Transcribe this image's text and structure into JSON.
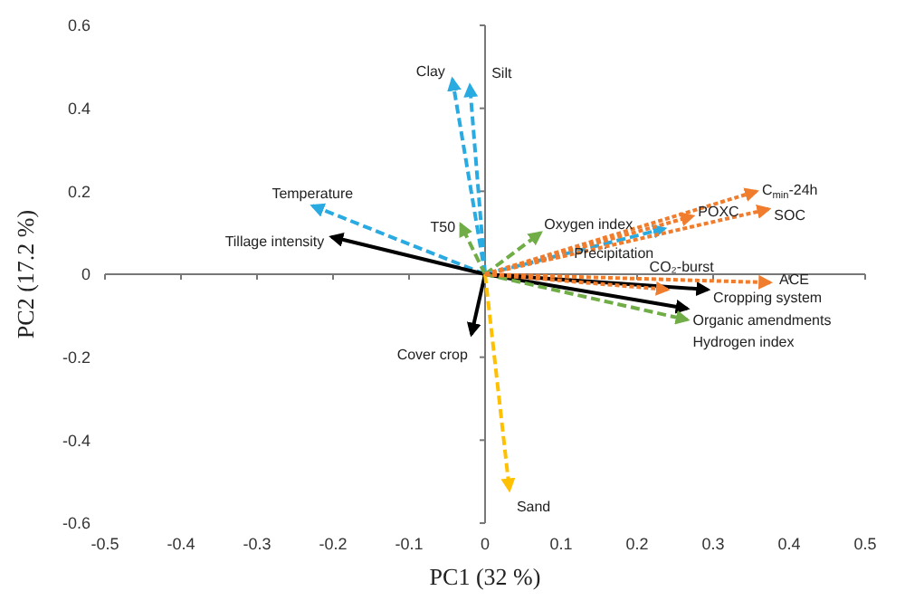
{
  "chart_data": {
    "type": "line",
    "xlabel": "PC1 (32 %)",
    "ylabel": "PC2 (17.2 %)",
    "xlim": [
      -0.5,
      0.5
    ],
    "xticks": [
      -0.5,
      -0.4,
      -0.3,
      -0.2,
      -0.1,
      0,
      0.1,
      0.2,
      0.3,
      0.4,
      0.5
    ],
    "ylim": [
      -0.6,
      0.6
    ],
    "yticks": [
      -0.6,
      -0.4,
      -0.2,
      0,
      0.2,
      0.4,
      0.6
    ],
    "legend": false,
    "marker": "none",
    "series": [
      {
        "name": "Clay",
        "color": "#29abe2",
        "line_style": "dashed",
        "x": [
          0,
          -0.043
        ],
        "values": [
          0,
          0.47
        ]
      },
      {
        "name": "Silt",
        "color": "#29abe2",
        "line_style": "dashed",
        "x": [
          0,
          -0.02
        ],
        "values": [
          0,
          0.455
        ]
      },
      {
        "name": "Temperature",
        "color": "#29abe2",
        "line_style": "dashed",
        "x": [
          0,
          -0.227
        ],
        "values": [
          0,
          0.165
        ]
      },
      {
        "name": "Tillage intensity",
        "color": "#000000",
        "line_style": "solid",
        "x": [
          0,
          -0.202
        ],
        "values": [
          0,
          0.09
        ]
      },
      {
        "name": "T50",
        "color": "#70ad47",
        "line_style": "dashed",
        "x": [
          0,
          -0.032
        ],
        "values": [
          0,
          0.12
        ]
      },
      {
        "name": "Oxygen index",
        "color": "#70ad47",
        "line_style": "dashed",
        "x": [
          0,
          0.073
        ],
        "values": [
          0,
          0.1
        ]
      },
      {
        "name": "C$_{min}$-24h",
        "color": "#f07d2e",
        "line_style": "dotted",
        "x": [
          0,
          0.357
        ],
        "values": [
          0,
          0.2
        ]
      },
      {
        "name": "POXC",
        "color": "#f07d2e",
        "line_style": "dotted",
        "x": [
          0,
          0.273
        ],
        "values": [
          0,
          0.14
        ]
      },
      {
        "name": "SOC",
        "color": "#f07d2e",
        "line_style": "dotted",
        "x": [
          0,
          0.373
        ],
        "values": [
          0,
          0.157
        ]
      },
      {
        "name": "Precipitation",
        "color": "#29abe2",
        "line_style": "dashed",
        "x": [
          0,
          0.236
        ],
        "values": [
          0,
          0.11
        ]
      },
      {
        "name": "CO₂-burst",
        "color": "#f07d2e",
        "line_style": "dotted",
        "x": [
          0,
          0.24
        ],
        "values": [
          0,
          -0.037
        ]
      },
      {
        "name": "ACE",
        "color": "#f07d2e",
        "line_style": "dotted",
        "x": [
          0,
          0.375
        ],
        "values": [
          0,
          -0.02
        ]
      },
      {
        "name": "Cropping system",
        "color": "#000000",
        "line_style": "solid",
        "x": [
          0,
          0.293
        ],
        "values": [
          0,
          -0.037
        ]
      },
      {
        "name": "Organic amendments",
        "color": "#000000",
        "line_style": "solid",
        "x": [
          0,
          0.266
        ],
        "values": [
          0,
          -0.083
        ]
      },
      {
        "name": "Hydrogen index",
        "color": "#70ad47",
        "line_style": "dashed",
        "x": [
          0,
          0.266
        ],
        "values": [
          0,
          -0.11
        ]
      },
      {
        "name": "Cover crop",
        "color": "#000000",
        "line_style": "solid",
        "x": [
          0,
          -0.018
        ],
        "values": [
          0,
          -0.145
        ]
      },
      {
        "name": "Sand",
        "color": "#ffc000",
        "line_style": "dashed",
        "x": [
          0,
          0.032
        ],
        "values": [
          0,
          -0.52
        ]
      }
    ]
  }
}
